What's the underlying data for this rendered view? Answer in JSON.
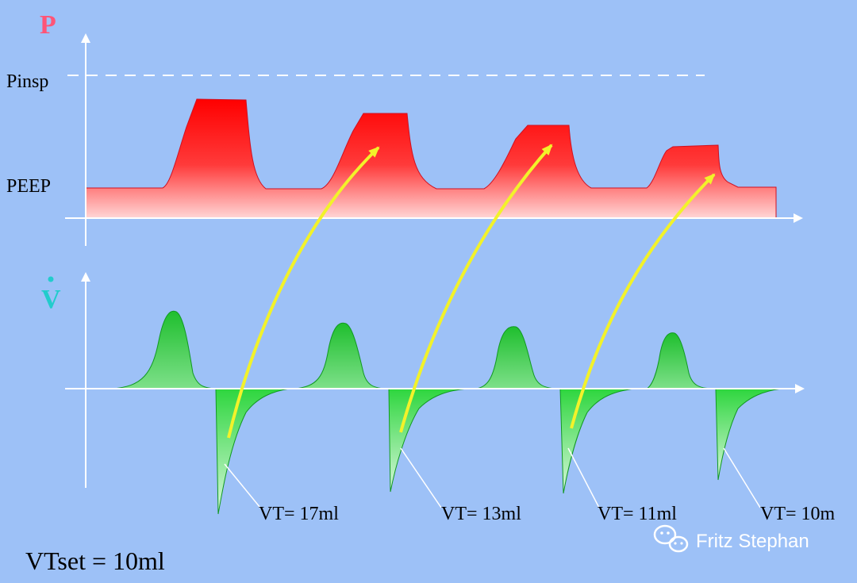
{
  "diagram": {
    "pressure_axis_label": "P",
    "flow_axis_label": "V",
    "pinsp_label": "Pinsp",
    "peep_label": "PEEP",
    "vt_set_label": "VTset = 10ml",
    "vt_labels": [
      "VT= 17ml",
      "VT= 13ml",
      "VT= 11ml",
      "VT= 10m"
    ],
    "watermark": "Fritz Stephan"
  },
  "colors": {
    "background": "#9dc1f7",
    "pressure_fill_top": "#ff0000",
    "pressure_fill_bottom": "#ffd6d6",
    "flow_fill": "#22cc33",
    "arrow": "#f2f22a",
    "p_label": "#ff5577",
    "v_label": "#22cccc",
    "axis": "#ffffff"
  }
}
